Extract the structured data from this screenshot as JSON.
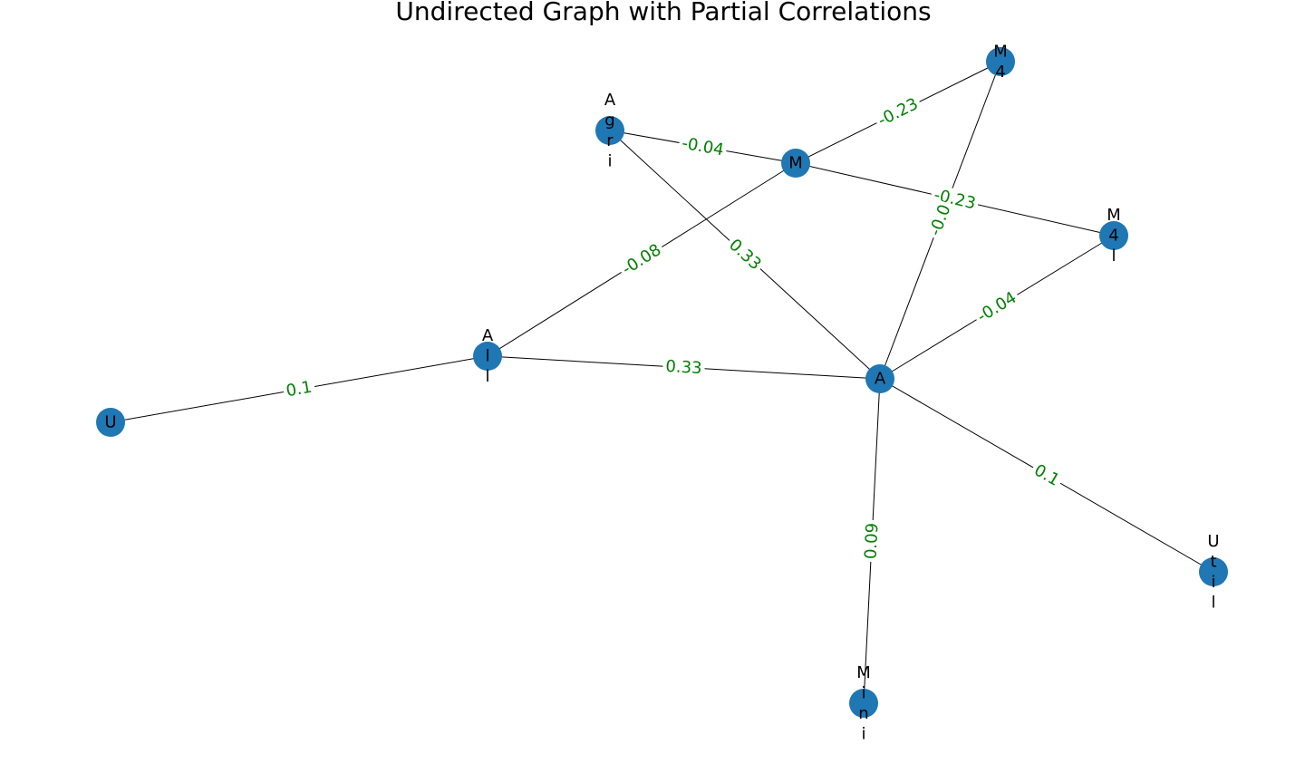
{
  "title": "Undirected Graph with Partial Correlations",
  "colors": {
    "node_fill": "#1f77b4",
    "edge_stroke": "#000000",
    "edge_label": "#008000",
    "background": "#ffffff",
    "text": "#000000"
  },
  "nodes": [
    {
      "id": "M4",
      "label": "M4"
    },
    {
      "id": "Agri",
      "label": "Agri"
    },
    {
      "id": "M",
      "label": "M"
    },
    {
      "id": "M4l",
      "label": "M4l"
    },
    {
      "id": "All",
      "label": "All"
    },
    {
      "id": "A",
      "label": "A"
    },
    {
      "id": "U",
      "label": "U"
    },
    {
      "id": "Util",
      "label": "Util"
    },
    {
      "id": "Mini",
      "label": "Mini"
    }
  ],
  "edges": [
    {
      "source": "U",
      "target": "All",
      "label": "0.1"
    },
    {
      "source": "All",
      "target": "A",
      "label": "0.33"
    },
    {
      "source": "All",
      "target": "M",
      "label": "-0.08"
    },
    {
      "source": "Agri",
      "target": "M",
      "label": "-0.04"
    },
    {
      "source": "Agri",
      "target": "A",
      "label": "0.33"
    },
    {
      "source": "M",
      "target": "M4",
      "label": "-0.23"
    },
    {
      "source": "M",
      "target": "M4l",
      "label": "-0.23"
    },
    {
      "source": "M4",
      "target": "A",
      "label": "-0.0"
    },
    {
      "source": "M4l",
      "target": "A",
      "label": "-0.04"
    },
    {
      "source": "A",
      "target": "Util",
      "label": "0.1"
    },
    {
      "source": "A",
      "target": "Mini",
      "label": "0.09"
    }
  ]
}
